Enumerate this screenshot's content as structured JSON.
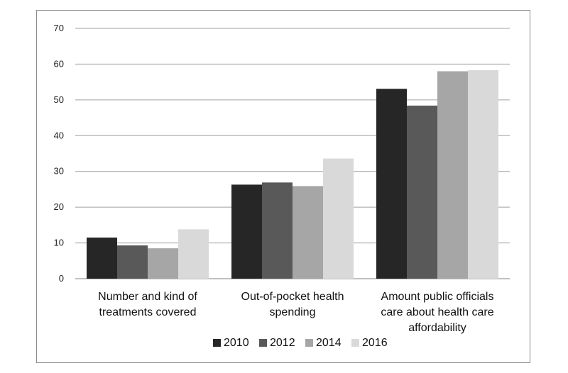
{
  "chart_data": {
    "type": "bar",
    "title": "",
    "xlabel": "",
    "ylabel": "",
    "ylim": [
      0,
      70
    ],
    "yticks": [
      0,
      10,
      20,
      30,
      40,
      50,
      60,
      70
    ],
    "grid": true,
    "legend_position": "bottom",
    "categories": [
      [
        "Number and kind of",
        "treatments covered"
      ],
      [
        "Out-of-pocket health",
        "spending"
      ],
      [
        "Amount public officials",
        "care about health care",
        "affordability"
      ]
    ],
    "series": [
      {
        "name": "2010",
        "color": "#262626",
        "values": [
          11.5,
          26.3,
          53.1
        ]
      },
      {
        "name": "2012",
        "color": "#595959",
        "values": [
          9.3,
          26.9,
          48.4
        ]
      },
      {
        "name": "2014",
        "color": "#a6a6a6",
        "values": [
          8.5,
          25.9,
          58.0
        ]
      },
      {
        "name": "2016",
        "color": "#d9d9d9",
        "values": [
          13.8,
          33.6,
          58.3
        ]
      }
    ]
  }
}
